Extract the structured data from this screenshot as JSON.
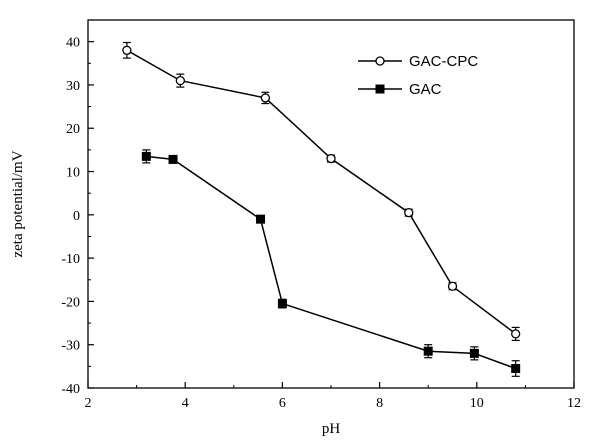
{
  "chart_data": {
    "type": "line",
    "xlabel": "pH",
    "ylabel": "zeta potential/mV",
    "xlim": [
      2,
      12
    ],
    "ylim": [
      -40,
      45
    ],
    "xticks": [
      2,
      4,
      6,
      8,
      10,
      12
    ],
    "yticks": [
      -40,
      -30,
      -20,
      -10,
      0,
      10,
      20,
      30,
      40
    ],
    "grid": false,
    "legend_position": "top-right",
    "series": [
      {
        "name": "GAC-CPC",
        "marker": "open-circle",
        "color": "#000000",
        "points": [
          {
            "x": 2.8,
            "y": 38,
            "err": 1.8
          },
          {
            "x": 3.9,
            "y": 31,
            "err": 1.5
          },
          {
            "x": 5.65,
            "y": 27,
            "err": 1.3
          },
          {
            "x": 7.0,
            "y": 13,
            "err": 0.8
          },
          {
            "x": 8.6,
            "y": 0.5,
            "err": 0.8
          },
          {
            "x": 9.5,
            "y": -16.5,
            "err": 0.8
          },
          {
            "x": 10.8,
            "y": -27.5,
            "err": 1.5
          }
        ]
      },
      {
        "name": "GAC",
        "marker": "filled-square",
        "color": "#000000",
        "points": [
          {
            "x": 3.2,
            "y": 13.5,
            "err": 1.5
          },
          {
            "x": 3.75,
            "y": 12.8,
            "err": 0.8
          },
          {
            "x": 5.55,
            "y": -1,
            "err": 0.5
          },
          {
            "x": 6.0,
            "y": -20.5,
            "err": 1.0
          },
          {
            "x": 9.0,
            "y": -31.5,
            "err": 1.5
          },
          {
            "x": 9.95,
            "y": -32,
            "err": 1.5
          },
          {
            "x": 10.8,
            "y": -35.5,
            "err": 1.8
          }
        ]
      }
    ]
  }
}
